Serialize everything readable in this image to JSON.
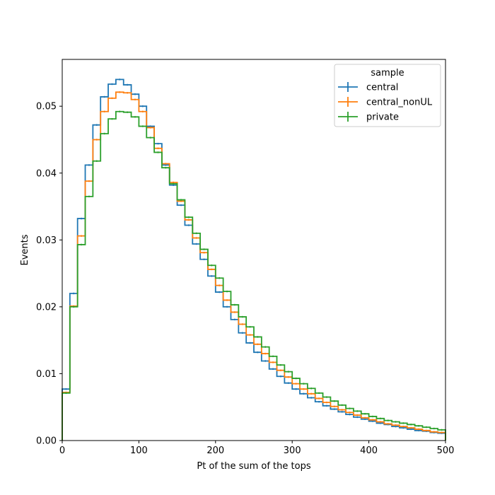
{
  "chart_data": {
    "type": "line",
    "subtype": "step-histogram",
    "title": "",
    "xlabel": "Pt of the sum of the tops",
    "ylabel": "Events",
    "xlim": [
      0,
      500
    ],
    "ylim": [
      0,
      0.057
    ],
    "xticks": [
      0,
      100,
      200,
      300,
      400,
      500
    ],
    "yticks": [
      0.0,
      0.01,
      0.02,
      0.03,
      0.04,
      0.05
    ],
    "ytick_labels": [
      "0.00",
      "0.01",
      "0.02",
      "0.03",
      "0.04",
      "0.05"
    ],
    "grid": false,
    "legend": {
      "title": "sample",
      "placement": "top-right"
    },
    "bin_edges": [
      0,
      10,
      20,
      30,
      40,
      50,
      60,
      70,
      80,
      90,
      100,
      110,
      120,
      130,
      140,
      150,
      160,
      170,
      180,
      190,
      200,
      210,
      220,
      230,
      240,
      250,
      260,
      270,
      280,
      290,
      300,
      310,
      320,
      330,
      340,
      350,
      360,
      370,
      380,
      390,
      400,
      410,
      420,
      430,
      440,
      450,
      460,
      470,
      480,
      490,
      500
    ],
    "series": [
      {
        "name": "central",
        "color": "#1f77b4",
        "values": [
          0.0077,
          0.022,
          0.0332,
          0.0412,
          0.0472,
          0.0514,
          0.0533,
          0.054,
          0.0532,
          0.0518,
          0.05,
          0.047,
          0.0444,
          0.0412,
          0.0382,
          0.0352,
          0.0322,
          0.0294,
          0.0271,
          0.0246,
          0.0222,
          0.02,
          0.0181,
          0.0161,
          0.0146,
          0.0132,
          0.0119,
          0.0107,
          0.0096,
          0.0086,
          0.0077,
          0.007,
          0.0064,
          0.0058,
          0.0052,
          0.0047,
          0.0043,
          0.0039,
          0.0035,
          0.0032,
          0.0029,
          0.0026,
          0.0024,
          0.0021,
          0.0019,
          0.0017,
          0.0015,
          0.0014,
          0.0012,
          0.0011
        ]
      },
      {
        "name": "central_nonUL",
        "color": "#ff7f0e",
        "values": [
          0.0072,
          0.0201,
          0.0306,
          0.0388,
          0.045,
          0.0492,
          0.0512,
          0.0521,
          0.052,
          0.051,
          0.0492,
          0.0468,
          0.0437,
          0.0414,
          0.0386,
          0.0358,
          0.033,
          0.0303,
          0.0281,
          0.0256,
          0.0232,
          0.021,
          0.0192,
          0.0174,
          0.0158,
          0.0144,
          0.013,
          0.0117,
          0.0105,
          0.0095,
          0.0085,
          0.0077,
          0.007,
          0.0063,
          0.0057,
          0.0051,
          0.0046,
          0.0042,
          0.0038,
          0.0034,
          0.0031,
          0.0028,
          0.0025,
          0.0023,
          0.0021,
          0.0019,
          0.0017,
          0.0015,
          0.0013,
          0.0012
        ]
      },
      {
        "name": "private",
        "color": "#2ca02c",
        "values": [
          0.0071,
          0.02,
          0.0293,
          0.0365,
          0.0418,
          0.0459,
          0.0481,
          0.0492,
          0.0491,
          0.0484,
          0.047,
          0.0453,
          0.0431,
          0.0408,
          0.0384,
          0.036,
          0.0334,
          0.031,
          0.0286,
          0.0262,
          0.0243,
          0.0223,
          0.0203,
          0.0185,
          0.017,
          0.0155,
          0.014,
          0.0126,
          0.0113,
          0.0103,
          0.0093,
          0.0085,
          0.0078,
          0.0071,
          0.0065,
          0.0059,
          0.0053,
          0.0048,
          0.0044,
          0.004,
          0.0036,
          0.0033,
          0.003,
          0.0028,
          0.0026,
          0.0024,
          0.0022,
          0.002,
          0.0018,
          0.0016
        ]
      }
    ]
  }
}
